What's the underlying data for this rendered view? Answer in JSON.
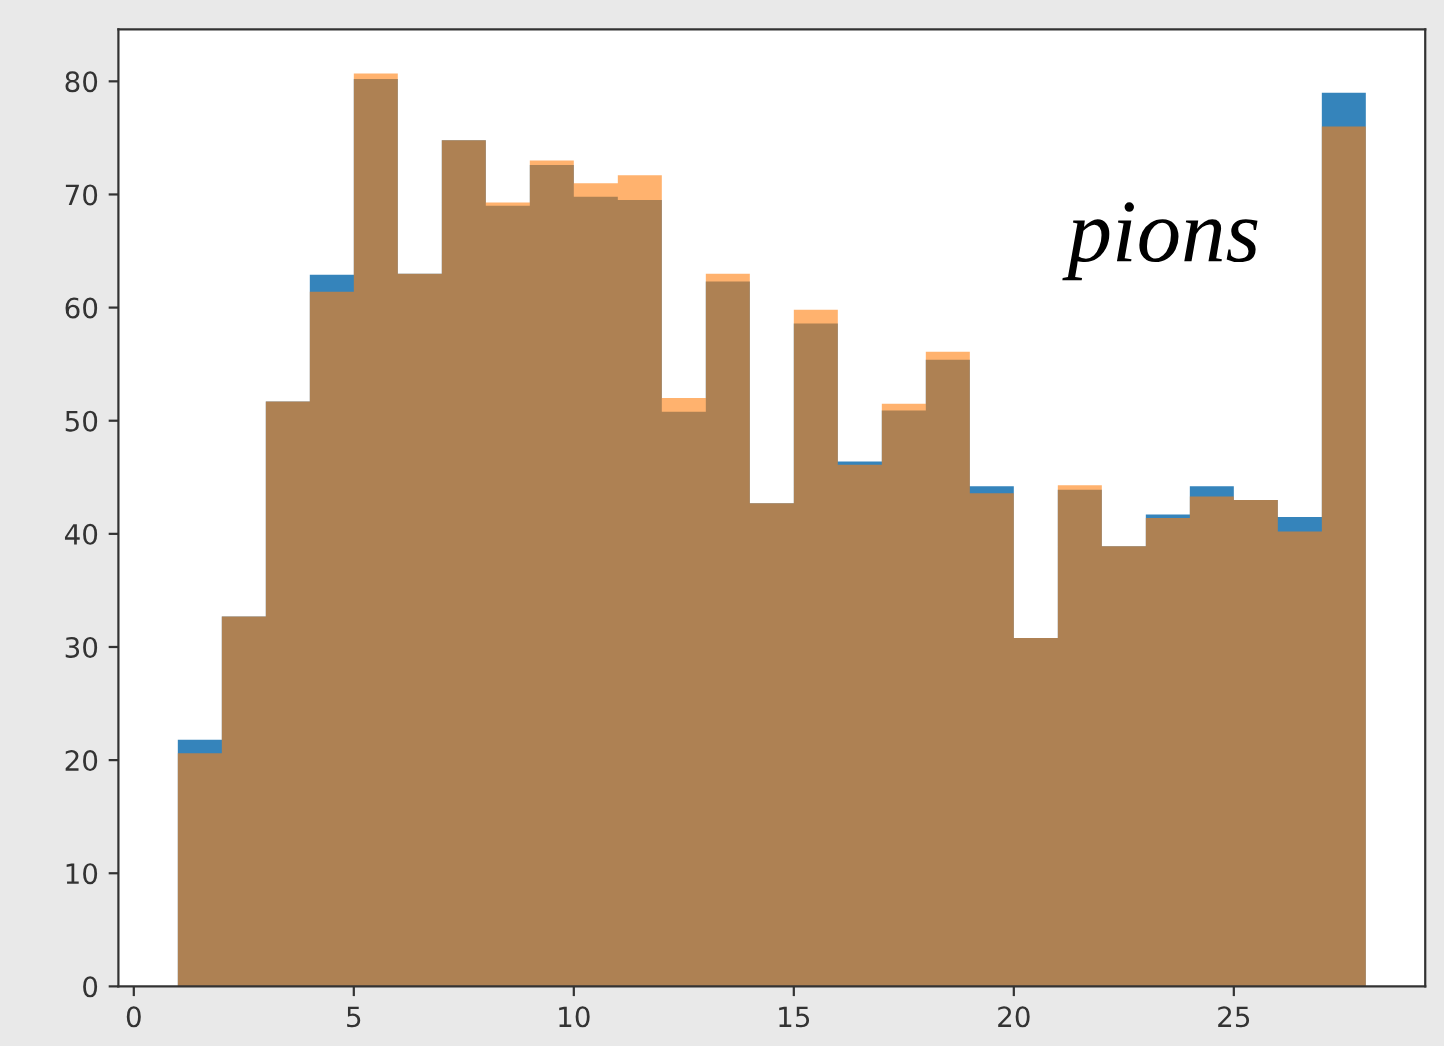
{
  "chart_data": {
    "type": "histogram",
    "bins": [
      1,
      2,
      3,
      4,
      5,
      6,
      7,
      8,
      9,
      10,
      11,
      12,
      13,
      14,
      15,
      16,
      17,
      18,
      19,
      20,
      21,
      22,
      23,
      24,
      25,
      26,
      27,
      28
    ],
    "series": [
      {
        "color": "#1f77b4",
        "values": [
          21.8,
          32.7,
          51.7,
          62.9,
          80.2,
          63,
          74.8,
          69,
          72.6,
          69.8,
          69.5,
          50.8,
          62.3,
          42.7,
          58.6,
          46.4,
          50.9,
          55.4,
          44.2,
          30.8,
          43.9,
          38.9,
          41.7,
          44.2,
          43,
          41.5,
          79
        ]
      },
      {
        "color": "#ff7f0e",
        "values": [
          20.6,
          32.7,
          51.7,
          61.4,
          80.7,
          63,
          74.8,
          69.3,
          73,
          71,
          71.7,
          52,
          63,
          42.7,
          59.8,
          46.1,
          51.5,
          56.1,
          43.6,
          30.8,
          44.3,
          38.9,
          41.4,
          43.3,
          43,
          40.2,
          76
        ]
      }
    ],
    "annotations": [
      "pions"
    ],
    "xlim": [
      -0.35,
      29.35
    ],
    "ylim": [
      0,
      84.6
    ],
    "xticks": [
      0,
      5,
      10,
      15,
      20,
      25
    ],
    "yticks": [
      0,
      10,
      20,
      30,
      40,
      50,
      60,
      70,
      80
    ],
    "grid": false,
    "legend": false
  }
}
